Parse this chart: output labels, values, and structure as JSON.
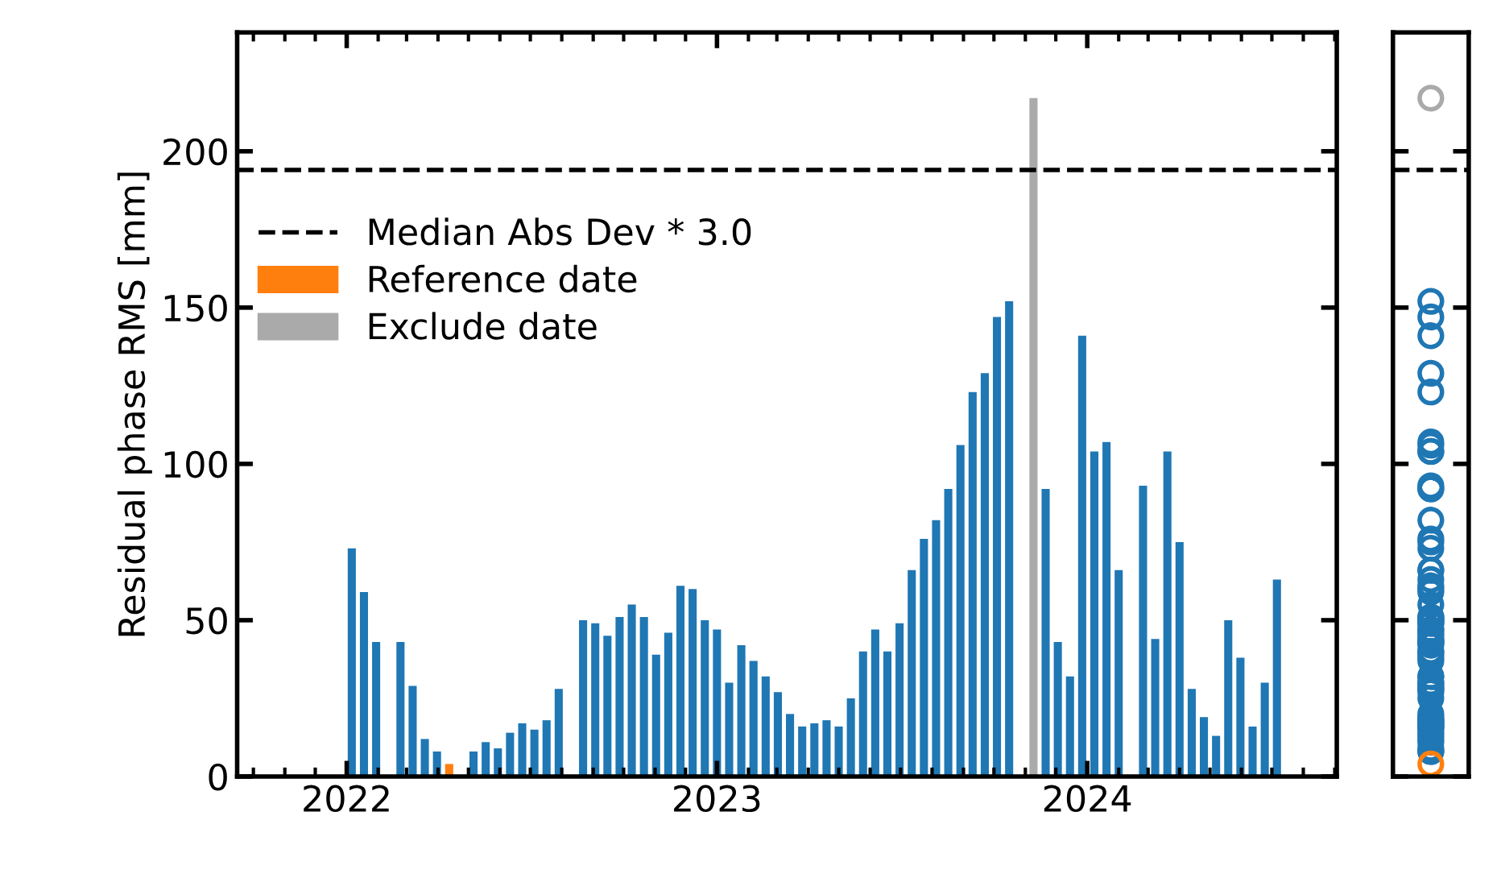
{
  "chart_data": {
    "type": "bar",
    "ylabel": "Residual phase RMS [mm]",
    "xlim": [
      "2021-09-15",
      "2024-09-03"
    ],
    "ylim": [
      0,
      238
    ],
    "xticks": [
      {
        "value": "2022-01-01",
        "label": "2022"
      },
      {
        "value": "2023-01-01",
        "label": "2023"
      },
      {
        "value": "2024-01-01",
        "label": "2024"
      }
    ],
    "yticks": [
      0,
      50,
      100,
      150,
      200
    ],
    "legend": "top left",
    "series": [
      {
        "color": "#1f77b4",
        "x": [
          "2022-01-06",
          "2022-01-18",
          "2022-01-30",
          "2022-02-23",
          "2022-03-07",
          "2022-03-19",
          "2022-03-31",
          "2022-05-06",
          "2022-05-18",
          "2022-05-30",
          "2022-06-11",
          "2022-06-23",
          "2022-07-05",
          "2022-07-17",
          "2022-07-29",
          "2022-08-22",
          "2022-09-03",
          "2022-09-15",
          "2022-09-27",
          "2022-10-09",
          "2022-10-21",
          "2022-11-02",
          "2022-11-14",
          "2022-11-26",
          "2022-12-08",
          "2022-12-20",
          "2023-01-01",
          "2023-01-13",
          "2023-01-25",
          "2023-02-06",
          "2023-02-18",
          "2023-03-02",
          "2023-03-14",
          "2023-03-26",
          "2023-04-07",
          "2023-04-19",
          "2023-05-01",
          "2023-05-13",
          "2023-05-25",
          "2023-06-06",
          "2023-06-18",
          "2023-06-30",
          "2023-07-12",
          "2023-07-24",
          "2023-08-05",
          "2023-08-17",
          "2023-08-29",
          "2023-09-10",
          "2023-09-22",
          "2023-10-04",
          "2023-10-16",
          "2023-11-21",
          "2023-12-03",
          "2023-12-15",
          "2023-12-27",
          "2024-01-08",
          "2024-01-20",
          "2024-02-01",
          "2024-02-25",
          "2024-03-08",
          "2024-03-20",
          "2024-04-01",
          "2024-04-13",
          "2024-04-25",
          "2024-05-07",
          "2024-05-19",
          "2024-05-31",
          "2024-06-12",
          "2024-06-24",
          "2024-07-06"
        ],
        "values": [
          73,
          59,
          43,
          43,
          29,
          12,
          8,
          8,
          11,
          9,
          14,
          17,
          15,
          18,
          28,
          50,
          49,
          45,
          51,
          55,
          51,
          39,
          46,
          61,
          60,
          50,
          47,
          30,
          42,
          37,
          32,
          27,
          20,
          16,
          17,
          18,
          16,
          25,
          40,
          47,
          40,
          49,
          66,
          76,
          82,
          92,
          106,
          123,
          129,
          147,
          152,
          92,
          43,
          32,
          141,
          104,
          107,
          66,
          93,
          44,
          104,
          75,
          28,
          19,
          13,
          50,
          38,
          16,
          30,
          63
        ]
      },
      {
        "name": "Reference date",
        "color": "#ff7f0e",
        "x": [
          "2022-04-12"
        ],
        "values": [
          4
        ]
      },
      {
        "name": "Exclude date",
        "color": "#aaaaaa",
        "x": [
          "2023-11-09"
        ],
        "values": [
          217
        ]
      }
    ],
    "ref_lines": [
      {
        "axis": "y",
        "value": 194,
        "label": "Median Abs Dev * 3.0",
        "color": "#000000",
        "line_style": "dashed"
      }
    ]
  }
}
